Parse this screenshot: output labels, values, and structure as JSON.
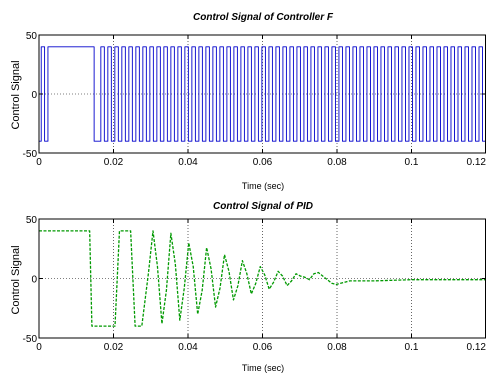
{
  "chart_data": [
    {
      "type": "line",
      "title": "Control Signal of Controller F",
      "xlabel": "Time (sec)",
      "ylabel": "Control Signal",
      "xlim": [
        0,
        0.12
      ],
      "ylim": [
        -50,
        50
      ],
      "xticks": [
        0,
        0.02,
        0.04,
        0.06,
        0.08,
        0.1,
        0.12
      ],
      "xtick_labels": [
        "0",
        "0.02",
        "0.04",
        "0.06",
        "0.08",
        "0.1",
        "0.12"
      ],
      "yticks": [
        -50,
        0,
        50
      ],
      "ytick_labels": [
        "-50",
        "0",
        "50"
      ],
      "grid": true,
      "series": [
        {
          "style": "solid",
          "color": "#0000cc",
          "signal": {
            "kind": "square-wave",
            "amplitude": 40,
            "segments": [
              {
                "t0": 0.0,
                "t1": 0.0006,
                "level": -40
              },
              {
                "t0": 0.0006,
                "t1": 0.0015,
                "level": 40
              },
              {
                "t0": 0.0015,
                "t1": 0.0024,
                "level": -40
              },
              {
                "t0": 0.0024,
                "t1": 0.0148,
                "level": 40
              },
              {
                "t0": 0.0148,
                "t1": 0.0166,
                "level": -40
              }
            ],
            "periodic": {
              "t0": 0.0166,
              "t1": 0.12,
              "period": 0.00188,
              "first_level": 40
            }
          }
        }
      ]
    },
    {
      "type": "line",
      "title": "Control Signal of PID",
      "xlabel": "Time (sec)",
      "ylabel": "Control Signal",
      "xlim": [
        0,
        0.12
      ],
      "ylim": [
        -50,
        50
      ],
      "xticks": [
        0,
        0.02,
        0.04,
        0.06,
        0.08,
        0.1,
        0.12
      ],
      "xtick_labels": [
        "0",
        "0.02",
        "0.04",
        "0.06",
        "0.08",
        "0.1",
        "0.12"
      ],
      "yticks": [
        -50,
        0,
        50
      ],
      "ytick_labels": [
        "-50",
        "0",
        "50"
      ],
      "grid": true,
      "series": [
        {
          "style": "dashed",
          "color": "#009900",
          "x": [
            0,
            0.0136,
            0.0142,
            0.0204,
            0.021,
            0.0216,
            0.0222,
            0.0246,
            0.0252,
            0.0258,
            0.0276,
            0.0294,
            0.0306,
            0.0318,
            0.033,
            0.0342,
            0.0354,
            0.0366,
            0.0378,
            0.039,
            0.0402,
            0.0414,
            0.0426,
            0.0438,
            0.045,
            0.0462,
            0.0474,
            0.0486,
            0.0498,
            0.051,
            0.0522,
            0.0534,
            0.0546,
            0.0558,
            0.057,
            0.0582,
            0.0594,
            0.0606,
            0.0618,
            0.063,
            0.0642,
            0.0654,
            0.0666,
            0.0678,
            0.069,
            0.0702,
            0.0714,
            0.0726,
            0.0738,
            0.075,
            0.0762,
            0.0774,
            0.0786,
            0.0798,
            0.081,
            0.0822,
            0.0834,
            0.09,
            0.1,
            0.11,
            0.12
          ],
          "y": [
            40,
            40,
            -40,
            -40,
            0,
            40,
            40,
            40,
            0,
            -40,
            -40,
            5,
            40,
            10,
            -38,
            -10,
            38,
            12,
            -35,
            -8,
            30,
            10,
            -30,
            -10,
            26,
            8,
            -24,
            -8,
            20,
            6,
            -18,
            -6,
            15,
            4,
            -13,
            -4,
            10,
            3,
            -9,
            -3,
            6,
            2,
            -6,
            -2,
            4,
            2,
            1,
            -1,
            4,
            5,
            2,
            -1,
            -4,
            -5,
            -4,
            -3,
            -2,
            -2,
            -1,
            -1,
            -1
          ]
        }
      ]
    }
  ]
}
